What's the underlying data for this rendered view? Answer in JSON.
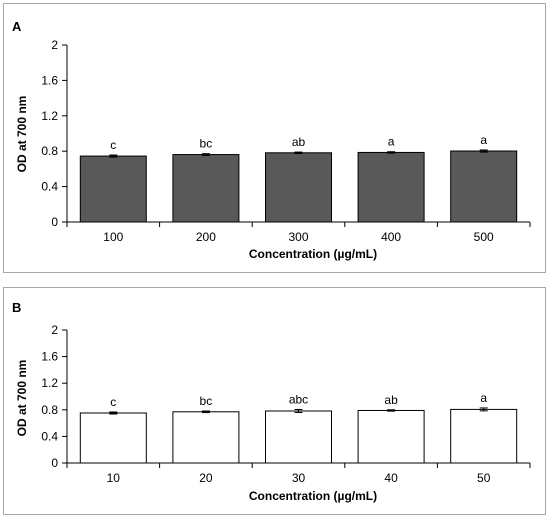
{
  "chart_data": [
    {
      "type": "bar",
      "panel_label": "A",
      "categories": [
        "100",
        "200",
        "300",
        "400",
        "500"
      ],
      "values": [
        0.745,
        0.762,
        0.782,
        0.786,
        0.802
      ],
      "errors": [
        0.012,
        0.01,
        0.008,
        0.008,
        0.012
      ],
      "significance": [
        "c",
        "bc",
        "ab",
        "a",
        "a"
      ],
      "xlabel": "Concentration (µg/mL)",
      "ylabel": "OD at 700 nm",
      "ylim": [
        0,
        2
      ],
      "yticks": [
        "0",
        "0.4",
        "0.8",
        "1.2",
        "1.6",
        "2"
      ],
      "bar_color": "#595959",
      "grid": false
    },
    {
      "type": "bar",
      "panel_label": "B",
      "categories": [
        "10",
        "20",
        "30",
        "40",
        "50"
      ],
      "values": [
        0.752,
        0.77,
        0.782,
        0.79,
        0.806
      ],
      "errors": [
        0.015,
        0.012,
        0.022,
        0.01,
        0.022
      ],
      "significance": [
        "c",
        "bc",
        "abc",
        "ab",
        "a"
      ],
      "xlabel": "Concentration (µg/mL)",
      "ylabel": "OD at 700 nm",
      "ylim": [
        0,
        2
      ],
      "yticks": [
        "0",
        "0.4",
        "0.8",
        "1.2",
        "1.6",
        "2"
      ],
      "bar_color": "#ffffff",
      "grid": false
    }
  ]
}
